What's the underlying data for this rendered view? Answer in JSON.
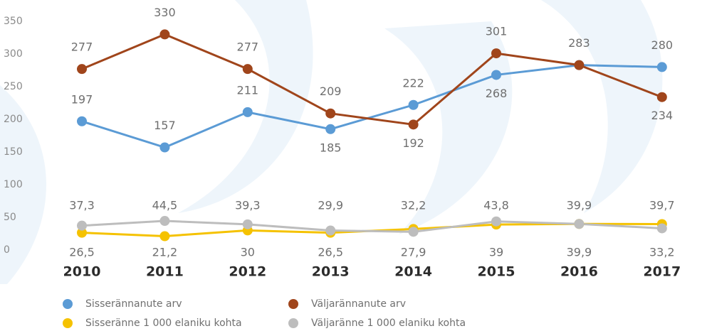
{
  "chart_data": {
    "type": "line",
    "categories": [
      "2010",
      "2011",
      "2012",
      "2013",
      "2014",
      "2015",
      "2016",
      "2017"
    ],
    "ylim": [
      0,
      350
    ],
    "yticks": [
      0,
      50,
      100,
      150,
      200,
      250,
      300,
      350
    ],
    "grid": false,
    "series": [
      {
        "name": "Sisserännanute arv",
        "color": "#5b9bd5",
        "values": [
          197,
          157,
          211,
          185,
          222,
          268,
          283,
          280
        ]
      },
      {
        "name": "Väljarännanute arv",
        "color": "#a0451b",
        "values": [
          277,
          330,
          277,
          209,
          192,
          301,
          283,
          234
        ]
      },
      {
        "name": "Sisseränne 1 000 elaniku kohta",
        "color": "#f5c200",
        "values": [
          26.5,
          21.2,
          30,
          26.5,
          32.2,
          39,
          39.9,
          39.7
        ],
        "value_labels": [
          "26,5",
          "21,2",
          "30",
          "26,5",
          "32,2",
          "39",
          "39,9",
          "39,7"
        ]
      },
      {
        "name": "Väljaränne 1 000 elaniku kohta",
        "color": "#bdbdbd",
        "values": [
          37.3,
          44.5,
          39.3,
          29.9,
          27.9,
          43.8,
          39.9,
          33.2
        ],
        "value_labels": [
          "37,3",
          "44,5",
          "39,3",
          "29,9",
          "27,9",
          "43,8",
          "39,9",
          "33,2"
        ]
      }
    ]
  }
}
